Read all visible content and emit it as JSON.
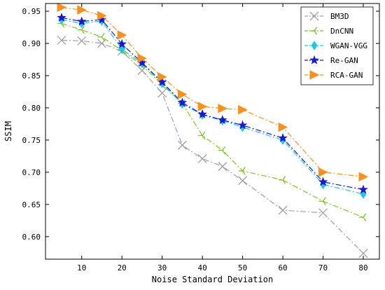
{
  "chart_data": {
    "type": "line",
    "xlabel": "Noise Standard Deviation",
    "ylabel": "SSIM",
    "x": [
      5,
      10,
      15,
      20,
      25,
      30,
      35,
      40,
      45,
      50,
      60,
      70,
      80
    ],
    "xticks": [
      10,
      20,
      30,
      40,
      50,
      60,
      70,
      80
    ],
    "yticks": [
      0.6,
      0.65,
      0.7,
      0.75,
      0.8,
      0.85,
      0.9,
      0.95
    ],
    "xlim": [
      1,
      84
    ],
    "ylim": [
      0.565,
      0.962
    ],
    "grid": false,
    "legend_position": "top-right",
    "series": [
      {
        "name": "BM3D",
        "color": "#a0a0a0",
        "dash": "8,3,2,3",
        "marker": "x",
        "values": [
          0.905,
          0.904,
          0.9,
          0.888,
          0.858,
          0.823,
          0.742,
          0.721,
          0.709,
          0.687,
          0.641,
          0.637,
          0.574
        ]
      },
      {
        "name": "DnCNN",
        "color": "#7fc41f",
        "dash": "8,3,2,3",
        "marker": "tri-left",
        "values": [
          0.931,
          0.921,
          0.91,
          0.889,
          0.866,
          0.836,
          0.807,
          0.757,
          0.734,
          0.702,
          0.688,
          0.655,
          0.63
        ]
      },
      {
        "name": "WGAN-VGG",
        "color": "#1cc8e4",
        "dash": "8,3,2,3",
        "marker": "diamond",
        "values": [
          0.937,
          0.931,
          0.935,
          0.891,
          0.869,
          0.838,
          0.806,
          0.789,
          0.78,
          0.77,
          0.75,
          0.681,
          0.666
        ]
      },
      {
        "name": "Re-GAN",
        "color": "#1a1acc",
        "dash": "8,3,2,3",
        "marker": "star",
        "values": [
          0.94,
          0.934,
          0.937,
          0.899,
          0.87,
          0.84,
          0.808,
          0.79,
          0.781,
          0.773,
          0.753,
          0.685,
          0.673
        ]
      },
      {
        "name": "RCA-GAN",
        "color": "#f7901e",
        "dash": "8,3,2,3",
        "marker": "tri-right",
        "values": [
          0.956,
          0.952,
          0.943,
          0.913,
          0.877,
          0.848,
          0.821,
          0.802,
          0.799,
          0.797,
          0.77,
          0.7,
          0.693
        ]
      }
    ]
  }
}
